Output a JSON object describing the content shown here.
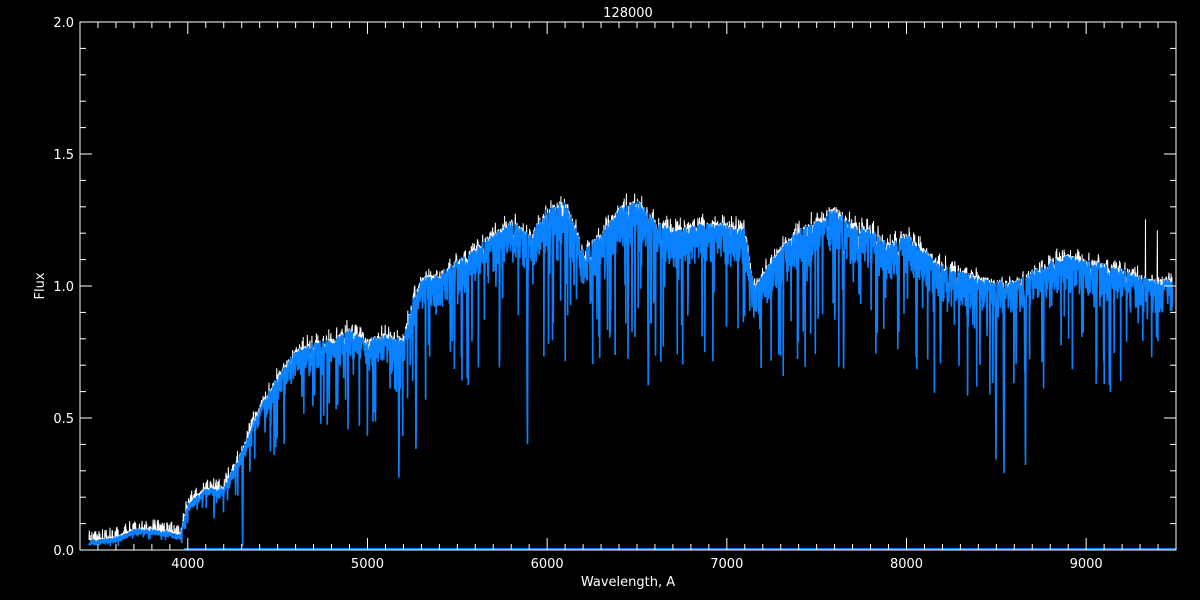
{
  "chart_data": {
    "type": "line",
    "title": "128000",
    "xlabel": "Wavelength, A",
    "ylabel": "Flux",
    "xlim": [
      3400,
      9500
    ],
    "ylim": [
      0,
      2.0
    ],
    "x_ticks": [
      4000,
      5000,
      6000,
      7000,
      8000,
      9000
    ],
    "x_tick_labels": [
      "4000",
      "5000",
      "6000",
      "7000",
      "8000",
      "9000"
    ],
    "y_ticks": [
      0,
      0.5,
      1.0,
      1.5,
      2.0
    ],
    "y_tick_labels": [
      "0.0",
      "0.5",
      "1.0",
      "1.5",
      "2.0"
    ],
    "grid": false,
    "background": "#000000",
    "axis_color": "#ffffff",
    "series": [
      {
        "color": "#ffffff",
        "continuum_wavelength": [
          3450,
          3500,
          3600,
          3700,
          3800,
          3900,
          3960,
          4000,
          4100,
          4200,
          4300,
          4400,
          4500,
          4600,
          4700,
          4800,
          4900,
          5000,
          5100,
          5200,
          5250,
          5300,
          5400,
          5500,
          5600,
          5700,
          5800,
          5900,
          6000,
          6100,
          6200,
          6300,
          6400,
          6500,
          6600,
          6700,
          6800,
          6900,
          7000,
          7100,
          7150,
          7200,
          7300,
          7400,
          7500,
          7600,
          7700,
          7800,
          7900,
          8000,
          8100,
          8200,
          8300,
          8400,
          8500,
          8600,
          8700,
          8800,
          8900,
          9000,
          9100,
          9200,
          9300,
          9400,
          9480
        ],
        "continuum_flux": [
          0.04,
          0.04,
          0.05,
          0.08,
          0.08,
          0.07,
          0.06,
          0.18,
          0.24,
          0.24,
          0.38,
          0.55,
          0.66,
          0.76,
          0.79,
          0.8,
          0.84,
          0.8,
          0.82,
          0.8,
          0.95,
          1.03,
          1.05,
          1.1,
          1.15,
          1.2,
          1.25,
          1.2,
          1.3,
          1.33,
          1.15,
          1.2,
          1.3,
          1.33,
          1.25,
          1.22,
          1.24,
          1.24,
          1.24,
          1.22,
          1.0,
          1.05,
          1.15,
          1.22,
          1.25,
          1.3,
          1.24,
          1.22,
          1.16,
          1.2,
          1.14,
          1.08,
          1.06,
          1.04,
          1.02,
          1.02,
          1.06,
          1.1,
          1.12,
          1.1,
          1.09,
          1.07,
          1.04,
          1.02,
          1.04
        ],
        "absorption_lines": [
          {
            "wavelength": 4305,
            "min_flux": 0.03
          },
          {
            "wavelength": 5175,
            "min_flux": 0.28
          },
          {
            "wavelength": 5270,
            "min_flux": 0.3
          },
          {
            "wavelength": 5890,
            "min_flux": 0.3
          },
          {
            "wavelength": 6563,
            "min_flux": 0.53
          },
          {
            "wavelength": 7650,
            "min_flux": 0.69
          },
          {
            "wavelength": 8498,
            "min_flux": 0.25
          },
          {
            "wavelength": 8542,
            "min_flux": 0.2
          },
          {
            "wavelength": 8662,
            "min_flux": 0.22
          }
        ]
      },
      {
        "color": "#0a82ff",
        "note_level": "overlay"
      },
      {
        "color": "#0a82ff",
        "x_range": [
          3980,
          9500
        ],
        "flux": 0.0
      }
    ]
  }
}
